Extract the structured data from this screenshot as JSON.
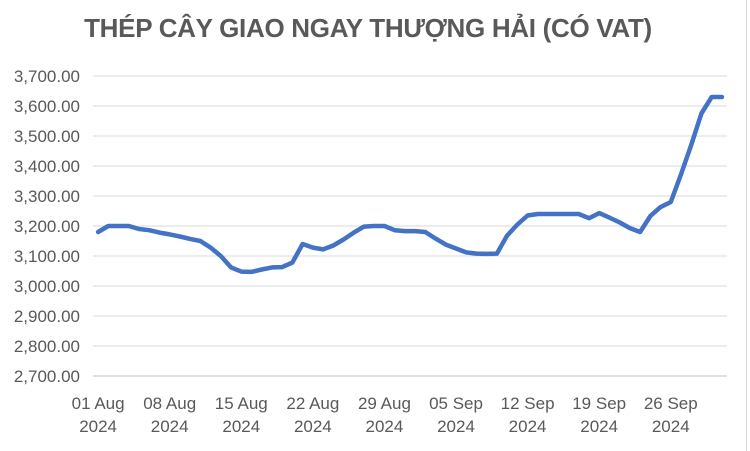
{
  "title": "THÉP CÂY GIAO NGAY THƯỢNG HẢI (CÓ VAT)",
  "colors": {
    "line": "#4472C4",
    "gridline": "#D9D9D9",
    "axis_line": "#BFBFBF",
    "label_text": "#595959",
    "title_text": "#595959",
    "chart_border": "#D9D9D9",
    "background": "#FFFFFF"
  },
  "chart_data": {
    "type": "line",
    "title": "THÉP CÂY GIAO NGAY THƯỢNG HẢI (CÓ VAT)",
    "legend": "none",
    "grid": "horizontal-only",
    "ylim": [
      2700,
      3700
    ],
    "y_tick_step": 100,
    "y_ticks": [
      {
        "value": 2700,
        "label": "2,700.00"
      },
      {
        "value": 2800,
        "label": "2,800.00"
      },
      {
        "value": 2900,
        "label": "2,900.00"
      },
      {
        "value": 3000,
        "label": "3,000.00"
      },
      {
        "value": 3100,
        "label": "3,100.00"
      },
      {
        "value": 3200,
        "label": "3,200.00"
      },
      {
        "value": 3300,
        "label": "3,300.00"
      },
      {
        "value": 3400,
        "label": "3,400.00"
      },
      {
        "value": 3500,
        "label": "3,500.00"
      },
      {
        "value": 3600,
        "label": "3,600.00"
      },
      {
        "value": 3700,
        "label": "3,700.00"
      }
    ],
    "x_ticks": [
      {
        "index": 0,
        "line1": "01 Aug",
        "line2": "2024"
      },
      {
        "index": 7,
        "line1": "08 Aug",
        "line2": "2024"
      },
      {
        "index": 14,
        "line1": "15 Aug",
        "line2": "2024"
      },
      {
        "index": 21,
        "line1": "22 Aug",
        "line2": "2024"
      },
      {
        "index": 28,
        "line1": "29 Aug",
        "line2": "2024"
      },
      {
        "index": 35,
        "line1": "05 Sep",
        "line2": "2024"
      },
      {
        "index": 42,
        "line1": "12 Sep",
        "line2": "2024"
      },
      {
        "index": 49,
        "line1": "19 Sep",
        "line2": "2024"
      },
      {
        "index": 56,
        "line1": "26 Sep",
        "line2": "2024"
      }
    ],
    "x": [
      "01 Aug 2024",
      "02 Aug 2024",
      "03 Aug 2024",
      "04 Aug 2024",
      "05 Aug 2024",
      "06 Aug 2024",
      "07 Aug 2024",
      "08 Aug 2024",
      "09 Aug 2024",
      "10 Aug 2024",
      "11 Aug 2024",
      "12 Aug 2024",
      "13 Aug 2024",
      "14 Aug 2024",
      "15 Aug 2024",
      "16 Aug 2024",
      "17 Aug 2024",
      "18 Aug 2024",
      "19 Aug 2024",
      "20 Aug 2024",
      "21 Aug 2024",
      "22 Aug 2024",
      "23 Aug 2024",
      "24 Aug 2024",
      "25 Aug 2024",
      "26 Aug 2024",
      "27 Aug 2024",
      "28 Aug 2024",
      "29 Aug 2024",
      "30 Aug 2024",
      "31 Aug 2024",
      "01 Sep 2024",
      "02 Sep 2024",
      "03 Sep 2024",
      "04 Sep 2024",
      "05 Sep 2024",
      "06 Sep 2024",
      "07 Sep 2024",
      "08 Sep 2024",
      "09 Sep 2024",
      "10 Sep 2024",
      "11 Sep 2024",
      "12 Sep 2024",
      "13 Sep 2024",
      "14 Sep 2024",
      "15 Sep 2024",
      "16 Sep 2024",
      "17 Sep 2024",
      "18 Sep 2024",
      "19 Sep 2024",
      "20 Sep 2024",
      "21 Sep 2024",
      "22 Sep 2024",
      "23 Sep 2024",
      "24 Sep 2024",
      "25 Sep 2024",
      "26 Sep 2024",
      "27 Sep 2024",
      "28 Sep 2024",
      "29 Sep 2024",
      "30 Sep 2024",
      "01 Oct 2024"
    ],
    "series": [
      {
        "color": "#4472C4",
        "values": [
          3180,
          3200,
          3200,
          3200,
          3190,
          3186,
          3178,
          3172,
          3165,
          3157,
          3150,
          3128,
          3100,
          3062,
          3048,
          3047,
          3055,
          3062,
          3063,
          3078,
          3140,
          3128,
          3122,
          3135,
          3155,
          3178,
          3198,
          3200,
          3200,
          3186,
          3183,
          3183,
          3180,
          3158,
          3138,
          3125,
          3112,
          3108,
          3107,
          3108,
          3168,
          3205,
          3235,
          3240,
          3240,
          3240,
          3240,
          3240,
          3226,
          3243,
          3228,
          3212,
          3193,
          3180,
          3233,
          3263,
          3280,
          3372,
          3470,
          3575,
          3630,
          3630
        ]
      }
    ]
  }
}
